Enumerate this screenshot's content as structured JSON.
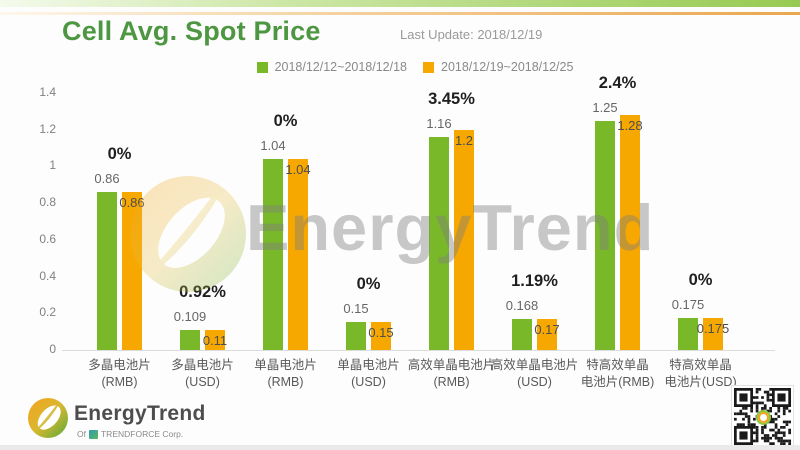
{
  "header": {
    "title": "Cell Avg. Spot Price",
    "last_update": "Last Update: 2018/12/19"
  },
  "legend": [
    {
      "label": "2018/12/12~2018/12/18",
      "color": "#79b829"
    },
    {
      "label": "2018/12/19~2018/12/25",
      "color": "#f7a800"
    }
  ],
  "chart_data": {
    "type": "bar",
    "title": "Cell Avg. Spot Price",
    "categories": [
      {
        "line1": "多晶电池片",
        "line2": "(RMB)"
      },
      {
        "line1": "多晶电池片",
        "line2": "(USD)"
      },
      {
        "line1": "单晶电池片",
        "line2": "(RMB)"
      },
      {
        "line1": "单晶电池片",
        "line2": "(USD)"
      },
      {
        "line1": "高效单晶电池片",
        "line2": "(RMB)"
      },
      {
        "line1": "高效单晶电池片",
        "line2": "(USD)"
      },
      {
        "line1": "特高效单晶",
        "line2": "电池片(RMB)"
      },
      {
        "line1": "特高效单晶",
        "line2": "电池片(USD)"
      }
    ],
    "series": [
      {
        "name": "2018/12/12~2018/12/18",
        "color": "#79b829",
        "values": [
          0.86,
          0.109,
          1.04,
          0.15,
          1.16,
          0.168,
          1.25,
          0.175
        ],
        "labels": [
          "0.86",
          "0.109",
          "1.04",
          "0.15",
          "1.16",
          "0.168",
          "1.25",
          "0.175"
        ]
      },
      {
        "name": "2018/12/19~2018/12/25",
        "color": "#f7a800",
        "values": [
          0.86,
          0.11,
          1.04,
          0.15,
          1.2,
          0.17,
          1.28,
          0.175
        ],
        "labels": [
          "0.86",
          "0.11",
          "1.04",
          "0.15",
          "1.2",
          "0.17",
          "1.28",
          "0.175"
        ]
      }
    ],
    "change_labels": [
      "0%",
      "0.92%",
      "0%",
      "0%",
      "3.45%",
      "1.19%",
      "2.4%",
      "0%"
    ],
    "ylim": [
      0,
      1.4
    ],
    "yticks": [
      "1.4",
      "1.2",
      "1",
      "0.8",
      "0.6",
      "0.4",
      "0.2",
      "0"
    ],
    "grid": false,
    "legend_position": "top"
  },
  "watermark": {
    "text": "EnergyTrend"
  },
  "footer": {
    "brand": "EnergyTrend",
    "brand_sub_prefix": "Of",
    "brand_sub": "TRENDFORCE Corp.",
    "qr_icon": "qr-code"
  }
}
